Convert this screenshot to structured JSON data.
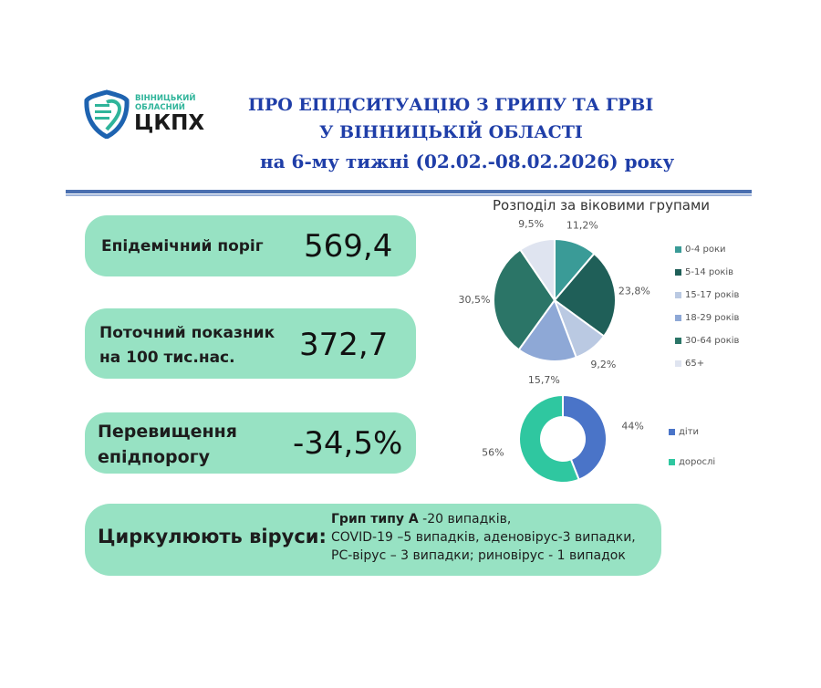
{
  "logo": {
    "line1": "ВІННИЦЬКИЙ",
    "line2": "ОБЛАСНИЙ",
    "name": "ЦКПХ"
  },
  "header": {
    "line1": "ПРО ЕПІДСИТУАЦІЮ З ГРИПУ ТА ГРВІ",
    "line2": "У ВІННИЦЬКІЙ ОБЛАСТІ",
    "line3": "на 6-му тижні (02.02.-08.02.2026) року"
  },
  "stats": [
    {
      "label": "Епідемічний поріг",
      "value": "569,4"
    },
    {
      "label_line1": "Поточний показник",
      "label_line2": "на 100 тис.нас.",
      "value": "372,7"
    },
    {
      "label_line1": "Перевищення",
      "label_line2": "епідпорогу",
      "value": "-34,5%"
    }
  ],
  "viruses": {
    "label": "Циркулюють віруси:",
    "line1_bold": "Грип типу А",
    "line1_rest": " -20 випадків,",
    "line2": "COVID-19 –5 випадків, аденовірус-3 випадки,",
    "line3": "РС-вірус – 3 випадки; риновірус - 1 випадок"
  },
  "chart_data": [
    {
      "type": "pie",
      "title": "Розподіл за віковими групами",
      "categories": [
        "0-4 роки",
        "5-14 років",
        "15-17 років",
        "18-29 років",
        "30-64 років",
        "65+"
      ],
      "values": [
        11.2,
        23.8,
        9.2,
        15.7,
        30.5,
        9.5
      ],
      "labels": [
        "11,2%",
        "23,8%",
        "9,2%",
        "15,7%",
        "30,5%",
        "9,5%"
      ],
      "colors": [
        "#3a9b97",
        "#1f5f58",
        "#bac9e2",
        "#8ea8d6",
        "#2b7567",
        "#dfe4f0"
      ],
      "legend": "right"
    },
    {
      "type": "pie",
      "title": "",
      "categories": [
        "діти",
        "дорослі"
      ],
      "values": [
        44,
        56
      ],
      "labels": [
        "44%",
        "56%"
      ],
      "colors": [
        "#4a74c8",
        "#2fc7a0"
      ],
      "legend": "right"
    }
  ]
}
